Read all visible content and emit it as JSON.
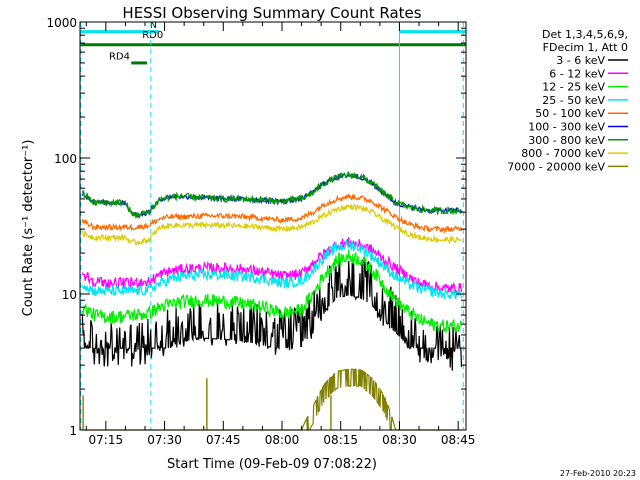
{
  "chart_data": {
    "type": "line",
    "title": "HESSI Observing Summary Count Rates",
    "xlabel": "Start Time (09-Feb-09 07:08:22)",
    "ylabel": "Count Rate (s⁻¹ detector⁻¹)",
    "yscale": "log",
    "ylim": [
      1,
      1000
    ],
    "xlim_minutes": [
      68.4,
      167.0
    ],
    "x_ticks": [
      {
        "label": "07:15",
        "minute": 75
      },
      {
        "label": "07:30",
        "minute": 90
      },
      {
        "label": "07:45",
        "minute": 105
      },
      {
        "label": "08:00",
        "minute": 120
      },
      {
        "label": "08:15",
        "minute": 135
      },
      {
        "label": "08:30",
        "minute": 150
      },
      {
        "label": "08:45",
        "minute": 165
      }
    ],
    "y_ticks": [
      {
        "label": "1",
        "value": 1
      },
      {
        "label": "10",
        "value": 10
      },
      {
        "label": "100",
        "value": 100
      },
      {
        "label": "1000",
        "value": 1000
      }
    ],
    "legend_header": [
      "Det 1,3,4,5,6,9,",
      "FDecim 1, Att 0"
    ],
    "legend_position": "right",
    "timestamp": "27-Feb-2010 20:23",
    "annotations": [
      {
        "text": "N",
        "color": "#00e5ee"
      },
      {
        "text": "RD0",
        "color": "#00e5ee"
      },
      {
        "text": "RD4",
        "color": "#007a00"
      }
    ],
    "flag_bars": [
      {
        "name": "N",
        "color": "#00e5ee",
        "level": 850,
        "ranges": [
          [
            68.4,
            88.5
          ],
          [
            150.0,
            167.0
          ]
        ]
      },
      {
        "name": "RD0",
        "color": "#007a00",
        "level": 680,
        "ranges": [
          [
            68.4,
            167.0
          ]
        ]
      },
      {
        "name": "RD4",
        "color": "#007a00",
        "level": 500,
        "ranges": [
          [
            81.5,
            85.5
          ]
        ]
      }
    ],
    "vertical_markers": [
      {
        "minute": 68.6,
        "style": "dashed",
        "color": "#00e5ee"
      },
      {
        "minute": 86.5,
        "style": "dashed",
        "color": "#00e5ee"
      },
      {
        "minute": 150.0,
        "style": "solid",
        "color": "#00e5ee"
      },
      {
        "minute": 166.3,
        "style": "dashed",
        "color": "#00e5ee"
      }
    ],
    "time_minutes": [
      69,
      72,
      75,
      78,
      80,
      81.5,
      83,
      86,
      89,
      92,
      95,
      100,
      105,
      110,
      115,
      120,
      125,
      128,
      131,
      134,
      137,
      140,
      143,
      146,
      149,
      152,
      155,
      158,
      161,
      164,
      166
    ],
    "series": [
      {
        "name": "3 - 6 keV",
        "color": "#000000",
        "noise": 0.35,
        "floor": 4,
        "values": [
          5,
          4.2,
          4.1,
          4.1,
          4.2,
          4.3,
          4.3,
          4.4,
          5,
          5.5,
          6,
          6.3,
          6.2,
          6,
          5.6,
          5.2,
          5.5,
          7,
          10,
          12.5,
          13,
          12.5,
          11,
          8.5,
          7,
          5.5,
          4.5,
          4.2,
          4,
          4,
          4
        ]
      },
      {
        "name": "6 - 12 keV",
        "color": "#ff00ff",
        "noise": 0.08,
        "values": [
          14,
          12.5,
          12,
          12,
          12,
          12,
          12.2,
          12.3,
          14,
          14.8,
          15.2,
          15.5,
          15.5,
          15.2,
          14.5,
          13.5,
          14,
          17,
          20,
          23,
          24,
          23,
          21,
          18,
          15.5,
          13.5,
          12,
          11.5,
          11,
          11,
          11
        ]
      },
      {
        "name": "12 - 25 keV",
        "color": "#00ee00",
        "noise": 0.1,
        "values": [
          8,
          7,
          6.8,
          6.8,
          6.9,
          7,
          7,
          7.2,
          8,
          8.5,
          8.8,
          9,
          8.8,
          8.5,
          8,
          7.2,
          7.6,
          10,
          14,
          17.5,
          19,
          18,
          15,
          11.5,
          9,
          7.5,
          6.5,
          6,
          5.8,
          5.8,
          5.8
        ]
      },
      {
        "name": "25 - 50 keV",
        "color": "#00e5ee",
        "noise": 0.08,
        "values": [
          12,
          10.5,
          10.5,
          10.5,
          10.5,
          10.5,
          10.5,
          10.8,
          12,
          13,
          13.5,
          13.8,
          13.8,
          13.5,
          13,
          12,
          12.5,
          15,
          19,
          22,
          23,
          22,
          19,
          16,
          13.5,
          12,
          11,
          10.5,
          10,
          10,
          10
        ]
      },
      {
        "name": "50 - 100 keV",
        "color": "#ff6a00",
        "noise": 0.04,
        "values": [
          34,
          31,
          31,
          31,
          31,
          31,
          31,
          32,
          36,
          37,
          37,
          37.5,
          37.5,
          37,
          36,
          35,
          36,
          40,
          46,
          50,
          52,
          51,
          48,
          42,
          37,
          33,
          31,
          30,
          30,
          30,
          30
        ]
      },
      {
        "name": "100 - 300 keV",
        "color": "#0000ee",
        "noise": 0.035,
        "values": [
          55,
          47,
          47,
          47,
          47,
          39,
          38,
          40,
          50,
          52,
          52,
          51,
          50,
          50,
          49,
          48,
          50,
          56,
          66,
          72,
          75,
          73,
          65,
          55,
          47,
          44,
          42,
          41,
          41,
          41,
          41
        ]
      },
      {
        "name": "300 - 800 keV",
        "color": "#009900",
        "noise": 0.05,
        "values": [
          55,
          47,
          47,
          47,
          47,
          39,
          38,
          40,
          50,
          52,
          52,
          51,
          50,
          50,
          49,
          48,
          50,
          56,
          66,
          72,
          75,
          73,
          65,
          55,
          47,
          44,
          42,
          41,
          41,
          41,
          41
        ]
      },
      {
        "name": "800 - 7000 keV",
        "color": "#ddcc00",
        "noise": 0.04,
        "values": [
          28,
          26,
          26,
          26,
          26,
          24,
          24,
          25,
          31,
          32,
          32,
          32,
          32,
          31.5,
          31,
          30,
          31,
          34,
          38,
          42,
          44,
          43,
          40,
          35,
          31,
          28,
          26,
          25.5,
          25,
          25,
          25
        ]
      },
      {
        "name": "7000 - 20000 keV",
        "color": "#808000",
        "noise": 0.0,
        "values": [
          1,
          1,
          1,
          1,
          1,
          1,
          1,
          1,
          1,
          1,
          1,
          1,
          1,
          1,
          1,
          1,
          1,
          1.5,
          2.2,
          2.7,
          2.8,
          2.8,
          2.4,
          1.8,
          1,
          1,
          1,
          1,
          1,
          1,
          1
        ]
      }
    ]
  }
}
